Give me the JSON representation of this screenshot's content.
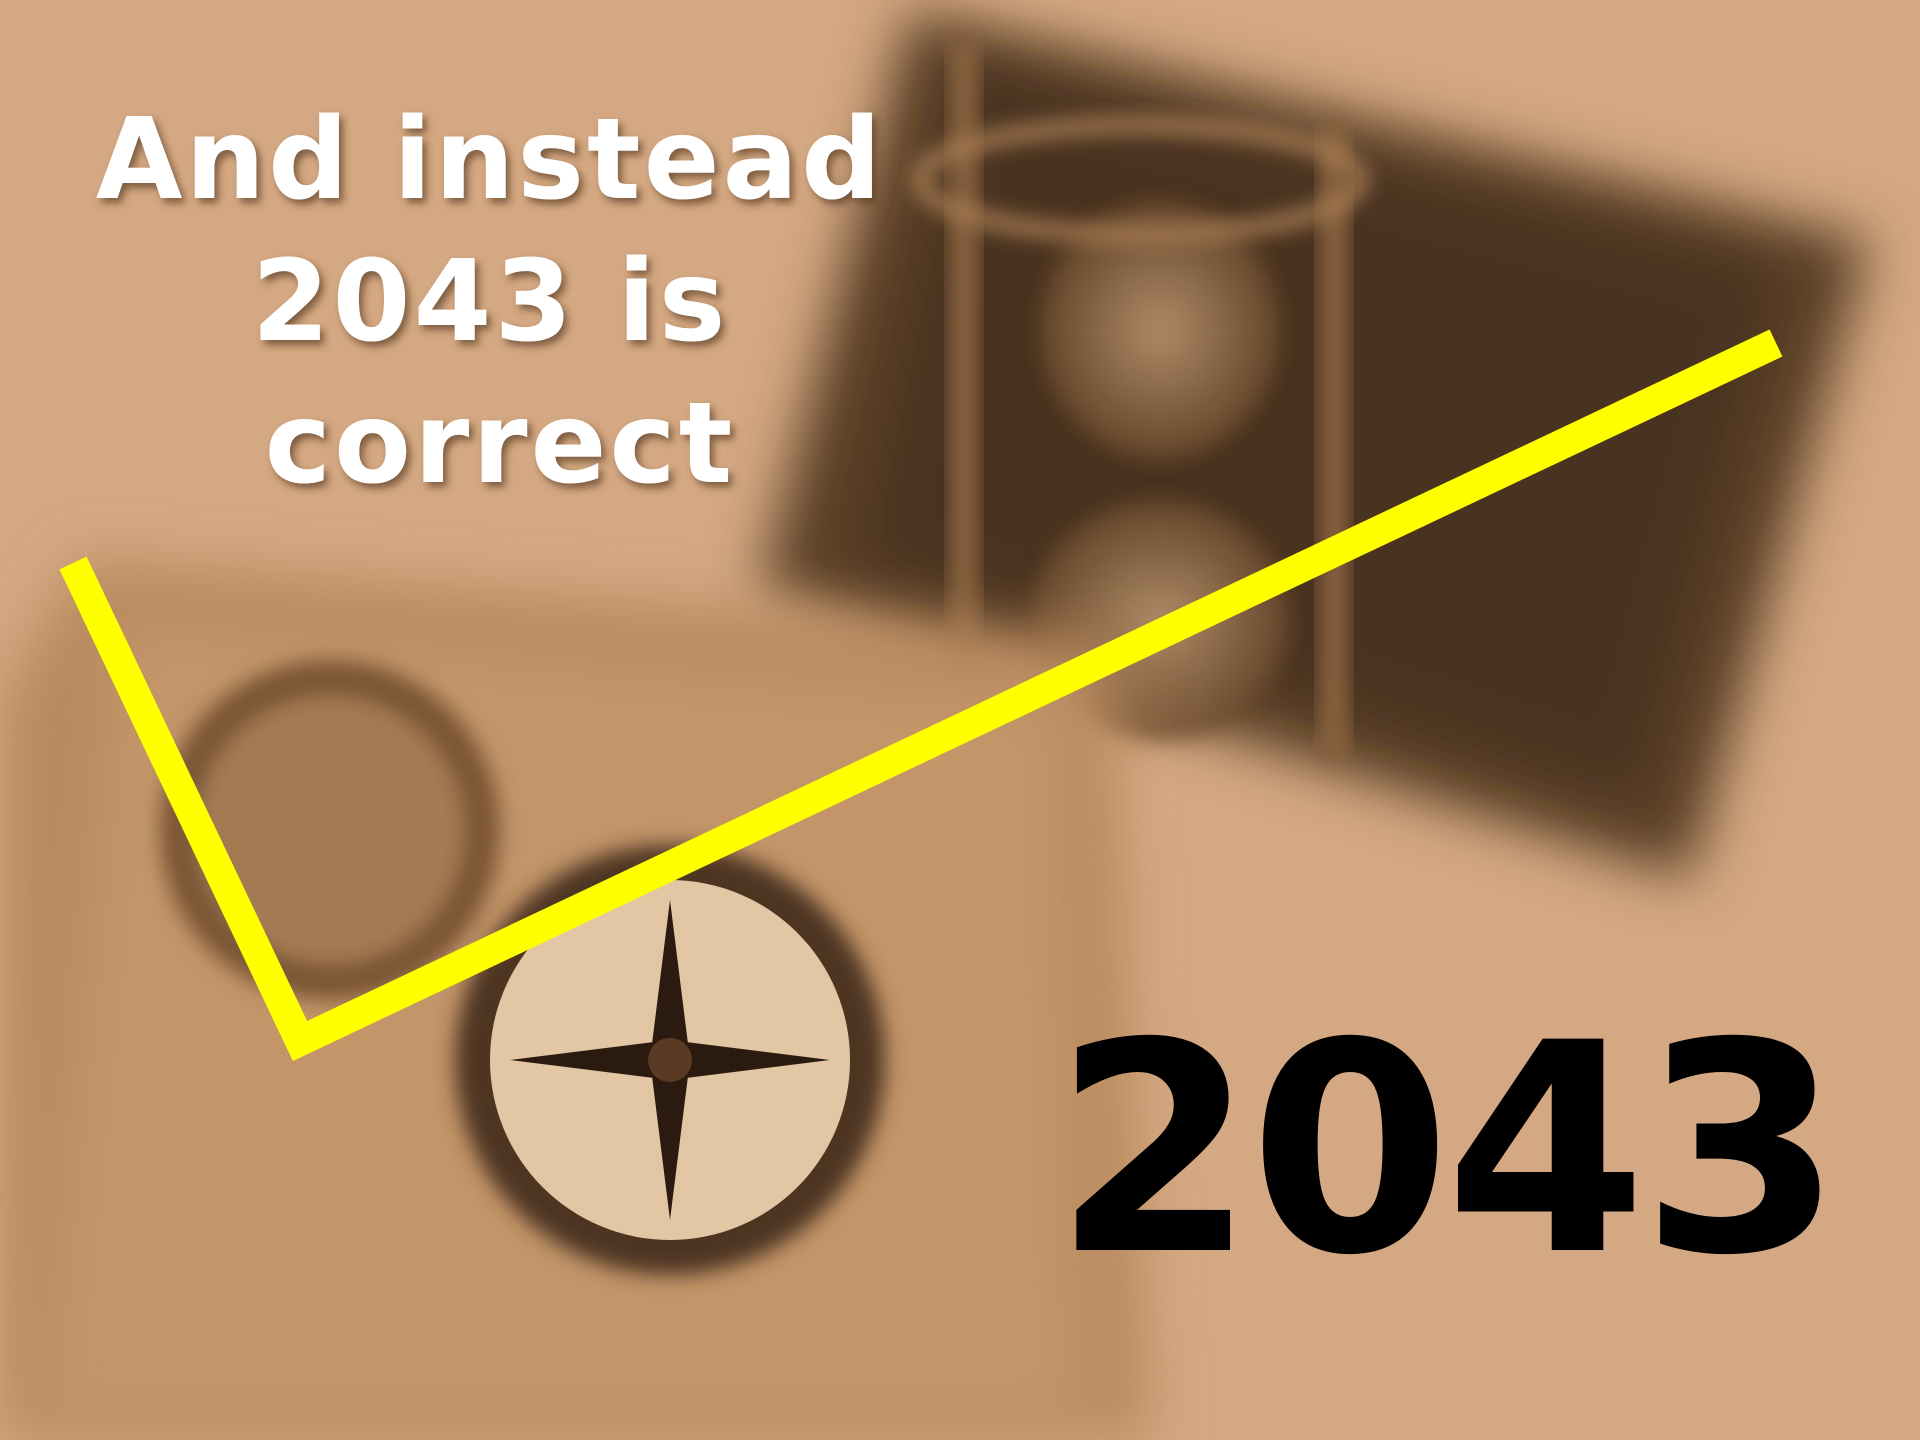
{
  "slide": {
    "title": {
      "lines": [
        "And instead",
        "2043 is",
        "correct"
      ]
    },
    "answer": "2043"
  }
}
